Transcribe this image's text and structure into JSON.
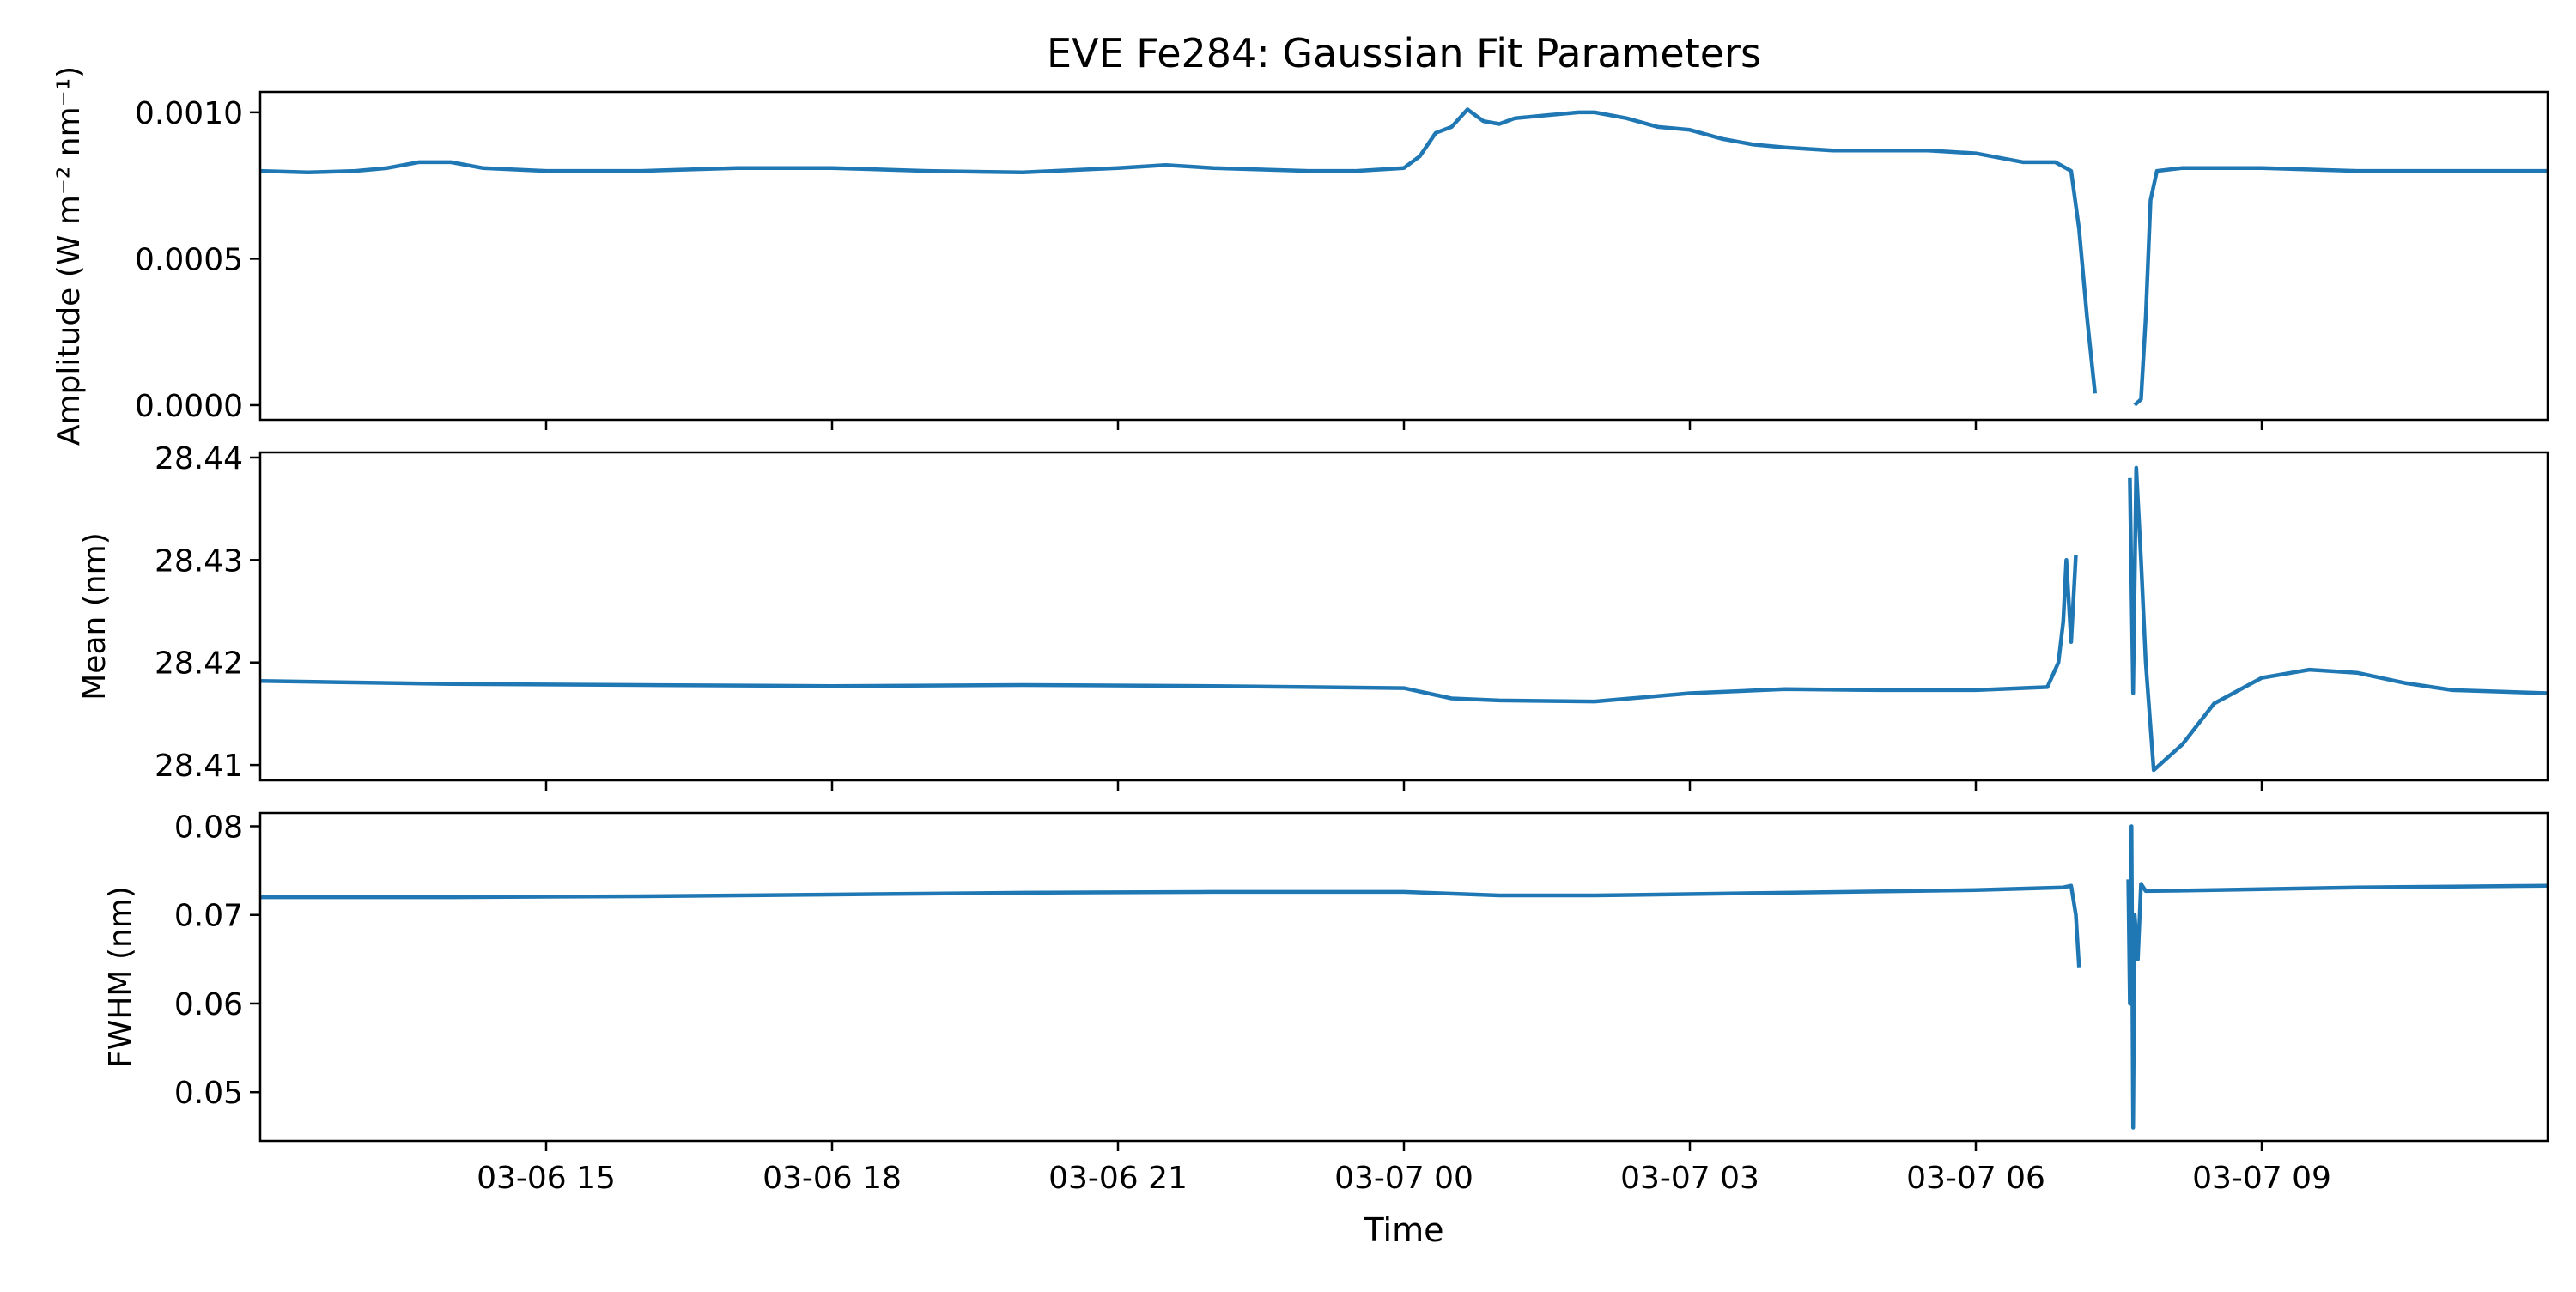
{
  "title": "EVE Fe284: Gaussian Fit Parameters",
  "xlabel": "Time",
  "x_ticks": [
    {
      "t": "03-06 15:00",
      "label": "03-06 15"
    },
    {
      "t": "03-06 18:00",
      "label": "03-06 18"
    },
    {
      "t": "03-06 21:00",
      "label": "03-06 21"
    },
    {
      "t": "03-07 00:00",
      "label": "03-07 00"
    },
    {
      "t": "03-07 03:00",
      "label": "03-07 03"
    },
    {
      "t": "03-07 06:00",
      "label": "03-07 06"
    },
    {
      "t": "03-07 09:00",
      "label": "03-07 09"
    }
  ],
  "colors": {
    "line": "#1f77b4",
    "axis": "#000000",
    "background": "#ffffff"
  },
  "chart_data": [
    {
      "type": "line",
      "name": "amplitude",
      "ylabel": "Amplitude (W m⁻² nm⁻¹)",
      "xlim": [
        "03-06 12:00",
        "03-07 12:00"
      ],
      "ylim": [
        -5e-05,
        0.00107
      ],
      "yticks": [
        {
          "v": 0.0,
          "label": "0.0000"
        },
        {
          "v": 0.0005,
          "label": "0.0005"
        },
        {
          "v": 0.001,
          "label": "0.0010"
        }
      ],
      "segments": [
        [
          [
            "03-06 12:00",
            0.0008
          ],
          [
            "03-06 12:30",
            0.000795
          ],
          [
            "03-06 13:00",
            0.0008
          ],
          [
            "03-06 13:20",
            0.00081
          ],
          [
            "03-06 13:40",
            0.00083
          ],
          [
            "03-06 14:00",
            0.00083
          ],
          [
            "03-06 14:20",
            0.00081
          ],
          [
            "03-06 15:00",
            0.0008
          ],
          [
            "03-06 16:00",
            0.0008
          ],
          [
            "03-06 17:00",
            0.00081
          ],
          [
            "03-06 18:00",
            0.00081
          ],
          [
            "03-06 19:00",
            0.0008
          ],
          [
            "03-06 20:00",
            0.000795
          ],
          [
            "03-06 21:00",
            0.00081
          ],
          [
            "03-06 21:30",
            0.00082
          ],
          [
            "03-06 22:00",
            0.00081
          ],
          [
            "03-06 23:00",
            0.0008
          ],
          [
            "03-06 23:30",
            0.0008
          ],
          [
            "03-07 00:00",
            0.00081
          ],
          [
            "03-07 00:10",
            0.00085
          ],
          [
            "03-07 00:20",
            0.00093
          ],
          [
            "03-07 00:30",
            0.00095
          ],
          [
            "03-07 00:40",
            0.00101
          ],
          [
            "03-07 00:50",
            0.00097
          ],
          [
            "03-07 01:00",
            0.00096
          ],
          [
            "03-07 01:10",
            0.00098
          ],
          [
            "03-07 01:30",
            0.00099
          ],
          [
            "03-07 01:50",
            0.001
          ],
          [
            "03-07 02:00",
            0.001
          ],
          [
            "03-07 02:20",
            0.00098
          ],
          [
            "03-07 02:40",
            0.00095
          ],
          [
            "03-07 03:00",
            0.00094
          ],
          [
            "03-07 03:20",
            0.00091
          ],
          [
            "03-07 03:40",
            0.00089
          ],
          [
            "03-07 04:00",
            0.00088
          ],
          [
            "03-07 04:30",
            0.00087
          ],
          [
            "03-07 05:00",
            0.00087
          ],
          [
            "03-07 05:30",
            0.00087
          ],
          [
            "03-07 06:00",
            0.00086
          ],
          [
            "03-07 06:30",
            0.00083
          ],
          [
            "03-07 06:50",
            0.00083
          ],
          [
            "03-07 07:00",
            0.0008
          ],
          [
            "03-07 07:05",
            0.0006
          ],
          [
            "03-07 07:10",
            0.0003
          ],
          [
            "03-07 07:15",
            4e-05
          ]
        ],
        [
          [
            "03-07 07:40",
            0.0
          ],
          [
            "03-07 07:44",
            2e-05
          ],
          [
            "03-07 07:47",
            0.0003
          ],
          [
            "03-07 07:50",
            0.0007
          ],
          [
            "03-07 07:54",
            0.0008
          ],
          [
            "03-07 08:10",
            0.00081
          ],
          [
            "03-07 09:00",
            0.00081
          ],
          [
            "03-07 10:00",
            0.0008
          ],
          [
            "03-07 11:00",
            0.0008
          ],
          [
            "03-07 12:00",
            0.0008
          ]
        ]
      ]
    },
    {
      "type": "line",
      "name": "mean",
      "ylabel": "Mean (nm)",
      "xlim": [
        "03-06 12:00",
        "03-07 12:00"
      ],
      "ylim": [
        28.4085,
        28.4405
      ],
      "yticks": [
        {
          "v": 28.41,
          "label": "28.41"
        },
        {
          "v": 28.42,
          "label": "28.42"
        },
        {
          "v": 28.43,
          "label": "28.43"
        },
        {
          "v": 28.44,
          "label": "28.44"
        }
      ],
      "segments": [
        [
          [
            "03-06 12:00",
            28.4182
          ],
          [
            "03-06 14:00",
            28.4179
          ],
          [
            "03-06 16:00",
            28.4178
          ],
          [
            "03-06 18:00",
            28.4177
          ],
          [
            "03-06 20:00",
            28.4178
          ],
          [
            "03-06 22:00",
            28.4177
          ],
          [
            "03-07 00:00",
            28.4175
          ],
          [
            "03-07 00:30",
            28.4165
          ],
          [
            "03-07 01:00",
            28.4163
          ],
          [
            "03-07 02:00",
            28.4162
          ],
          [
            "03-07 03:00",
            28.417
          ],
          [
            "03-07 04:00",
            28.4174
          ],
          [
            "03-07 05:00",
            28.4173
          ],
          [
            "03-07 06:00",
            28.4173
          ],
          [
            "03-07 06:45",
            28.4176
          ],
          [
            "03-07 06:52",
            28.42
          ],
          [
            "03-07 06:55",
            28.424
          ],
          [
            "03-07 06:57",
            28.43
          ],
          [
            "03-07 07:00",
            28.422
          ],
          [
            "03-07 07:03",
            28.4305
          ]
        ],
        [
          [
            "03-07 07:37",
            28.438
          ],
          [
            "03-07 07:39",
            28.417
          ],
          [
            "03-07 07:41",
            28.439
          ],
          [
            "03-07 07:44",
            28.43
          ],
          [
            "03-07 07:47",
            28.42
          ],
          [
            "03-07 07:52",
            28.4095
          ],
          [
            "03-07 08:10",
            28.412
          ],
          [
            "03-07 08:30",
            28.416
          ],
          [
            "03-07 09:00",
            28.4185
          ],
          [
            "03-07 09:30",
            28.4193
          ],
          [
            "03-07 10:00",
            28.419
          ],
          [
            "03-07 10:30",
            28.418
          ],
          [
            "03-07 11:00",
            28.4173
          ],
          [
            "03-07 12:00",
            28.417
          ]
        ]
      ]
    },
    {
      "type": "line",
      "name": "fwhm",
      "ylabel": "FWHM (nm)",
      "xlim": [
        "03-06 12:00",
        "03-07 12:00"
      ],
      "ylim": [
        0.0445,
        0.0815
      ],
      "yticks": [
        {
          "v": 0.05,
          "label": "0.05"
        },
        {
          "v": 0.06,
          "label": "0.06"
        },
        {
          "v": 0.07,
          "label": "0.07"
        },
        {
          "v": 0.08,
          "label": "0.08"
        }
      ],
      "segments": [
        [
          [
            "03-06 12:00",
            0.072
          ],
          [
            "03-06 14:00",
            0.072
          ],
          [
            "03-06 16:00",
            0.0721
          ],
          [
            "03-06 18:00",
            0.0723
          ],
          [
            "03-06 20:00",
            0.0725
          ],
          [
            "03-06 22:00",
            0.0726
          ],
          [
            "03-07 00:00",
            0.0726
          ],
          [
            "03-07 01:00",
            0.0722
          ],
          [
            "03-07 02:00",
            0.0722
          ],
          [
            "03-07 04:00",
            0.0725
          ],
          [
            "03-07 06:00",
            0.0728
          ],
          [
            "03-07 06:55",
            0.0731
          ],
          [
            "03-07 07:00",
            0.0733
          ],
          [
            "03-07 07:03",
            0.07
          ],
          [
            "03-07 07:05",
            0.064
          ]
        ],
        [
          [
            "03-07 07:36",
            0.074
          ],
          [
            "03-07 07:37",
            0.06
          ],
          [
            "03-07 07:38",
            0.08
          ],
          [
            "03-07 07:39",
            0.046
          ],
          [
            "03-07 07:40",
            0.07
          ],
          [
            "03-07 07:42",
            0.065
          ],
          [
            "03-07 07:44",
            0.0735
          ],
          [
            "03-07 07:47",
            0.0727
          ],
          [
            "03-07 08:30",
            0.0728
          ],
          [
            "03-07 10:00",
            0.0731
          ],
          [
            "03-07 11:00",
            0.0732
          ],
          [
            "03-07 12:00",
            0.0733
          ]
        ]
      ]
    }
  ]
}
